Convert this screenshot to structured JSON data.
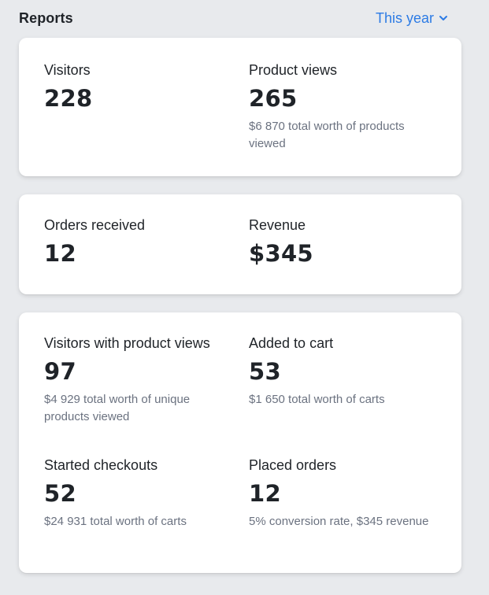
{
  "header": {
    "title": "Reports",
    "range_label": "This year",
    "range_icon": "chevron-down-icon",
    "accent_color": "#2c7be5"
  },
  "cards": [
    {
      "metrics": [
        {
          "label": "Visitors",
          "value": "228",
          "sub": ""
        },
        {
          "label": "Product views",
          "value": "265",
          "sub": "$6 870 total worth of products viewed"
        }
      ]
    },
    {
      "metrics": [
        {
          "label": "Orders received",
          "value": "12",
          "sub": ""
        },
        {
          "label": "Revenue",
          "value": "$345",
          "sub": ""
        }
      ]
    },
    {
      "metrics": [
        {
          "label": "Visitors with product views",
          "value": "97",
          "sub": "$4 929 total worth of unique products viewed"
        },
        {
          "label": "Added to cart",
          "value": "53",
          "sub": "$1 650 total worth of carts"
        },
        {
          "label": "Started checkouts",
          "value": "52",
          "sub": "$24 931 total worth of carts"
        },
        {
          "label": "Placed orders",
          "value": "12",
          "sub": "5% conversion rate, $345 revenue"
        }
      ]
    }
  ]
}
